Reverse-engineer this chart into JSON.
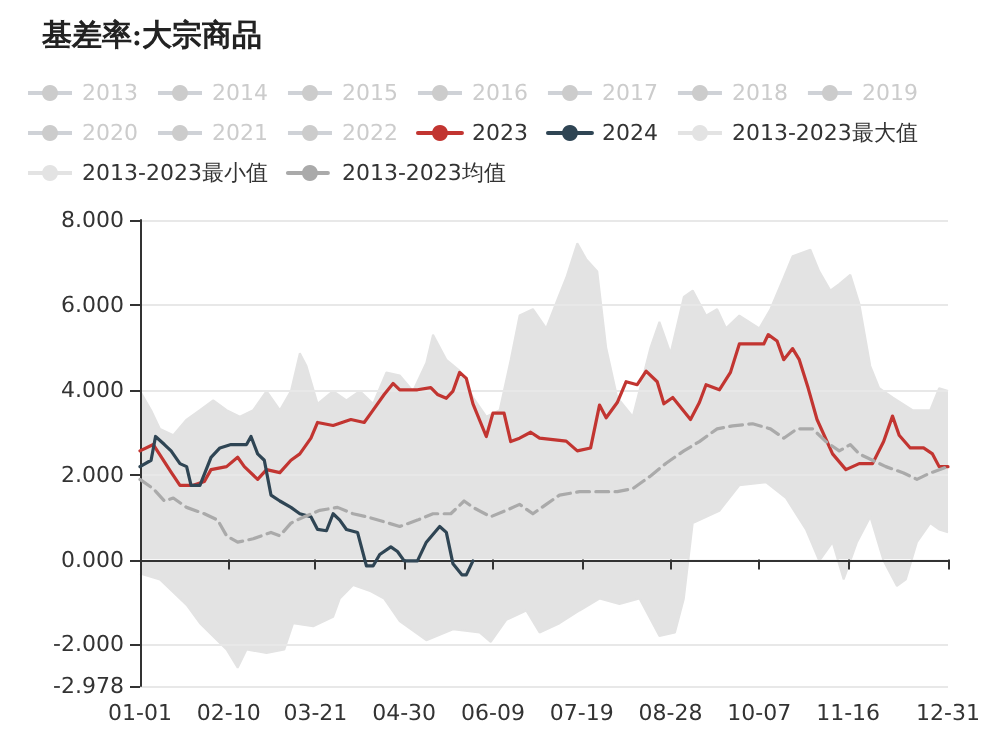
{
  "chart_data": {
    "type": "line",
    "title": "基差率:大宗商品",
    "xlim": [
      "--01-01",
      "--12-31"
    ],
    "xticks": [
      {
        "value": "--01-01",
        "label": "01-01"
      },
      {
        "value": "--02-10",
        "label": "02-10"
      },
      {
        "value": "--03-21",
        "label": "03-21"
      },
      {
        "value": "--04-30",
        "label": "04-30"
      },
      {
        "value": "--06-09",
        "label": "06-09"
      },
      {
        "value": "--07-19",
        "label": "07-19"
      },
      {
        "value": "--08-28",
        "label": "08-28"
      },
      {
        "value": "--10-07",
        "label": "10-07"
      },
      {
        "value": "--11-16",
        "label": "11-16"
      },
      {
        "value": "--12-31",
        "label": "12-31"
      }
    ],
    "ylim": [
      -2.978,
      8
    ],
    "yticks": [
      {
        "value": -2.978,
        "label": "-2.978"
      },
      {
        "value": -2,
        "label": "-2.000"
      },
      {
        "value": 0,
        "label": "0.000"
      },
      {
        "value": 2,
        "label": "2.000"
      },
      {
        "value": 4,
        "label": "4.000"
      },
      {
        "value": 6,
        "label": "6.000"
      },
      {
        "value": 8,
        "label": "8.000"
      }
    ],
    "grid": "y",
    "legend": "top",
    "marker": "none",
    "series": [
      {
        "name": "2013",
        "color": "#cccccc"
      },
      {
        "name": "2014",
        "color": "#cccccc"
      },
      {
        "name": "2015",
        "color": "#cccccc"
      },
      {
        "name": "2016",
        "color": "#cccccc"
      },
      {
        "name": "2017",
        "color": "#cccccc"
      },
      {
        "name": "2018",
        "color": "#cccccc"
      },
      {
        "name": "2019",
        "color": "#cccccc"
      },
      {
        "name": "2020",
        "color": "#cccccc"
      },
      {
        "name": "2021",
        "color": "#cccccc"
      },
      {
        "name": "2022",
        "color": "#cccccc"
      },
      {
        "name": "2023",
        "color": "#c23531",
        "x": [
          "--01-01",
          "--01-07",
          "--01-15",
          "--01-19",
          "--01-25",
          "--01-30",
          "--02-02",
          "--02-09",
          "--02-14",
          "--02-17",
          "--02-23",
          "--02-27",
          "--03-05",
          "--03-10",
          "--03-14",
          "--03-19",
          "--03-22",
          "--03-29",
          "--04-06",
          "--04-12",
          "--04-16",
          "--04-21",
          "--04-25",
          "--04-28",
          "--05-06",
          "--05-12",
          "--05-15",
          "--05-19",
          "--05-22",
          "--05-25",
          "--05-28",
          "--05-31",
          "--06-06",
          "--06-09",
          "--06-14",
          "--06-17",
          "--06-21",
          "--06-26",
          "--06-30",
          "--07-12",
          "--07-17",
          "--07-23",
          "--07-27",
          "--07-30",
          "--08-04",
          "--08-08",
          "--08-13",
          "--08-17",
          "--08-22",
          "--08-25",
          "--08-29",
          "--09-06",
          "--09-10",
          "--09-13",
          "--09-19",
          "--09-24",
          "--09-28",
          "--10-09",
          "--10-11",
          "--10-15",
          "--10-18",
          "--10-22",
          "--10-25",
          "--10-29",
          "--11-02",
          "--11-09",
          "--11-15",
          "--11-21",
          "--11-27",
          "--12-02",
          "--12-06",
          "--12-09",
          "--12-14",
          "--12-20",
          "--12-24",
          "--12-27",
          "--12-31"
        ],
        "values": [
          2.56,
          2.71,
          2.06,
          1.75,
          1.75,
          1.84,
          2.12,
          2.19,
          2.41,
          2.19,
          1.89,
          2.12,
          2.05,
          2.34,
          2.49,
          2.86,
          3.23,
          3.16,
          3.3,
          3.23,
          3.52,
          3.89,
          4.15,
          4.0,
          4.0,
          4.05,
          3.89,
          3.8,
          3.97,
          4.41,
          4.27,
          3.67,
          2.9,
          3.45,
          3.45,
          2.78,
          2.86,
          3.0,
          2.86,
          2.79,
          2.56,
          2.63,
          3.64,
          3.34,
          3.7,
          4.19,
          4.12,
          4.44,
          4.19,
          3.67,
          3.82,
          3.3,
          3.7,
          4.12,
          4.0,
          4.41,
          5.08,
          5.08,
          5.3,
          5.15,
          4.71,
          4.97,
          4.71,
          4.04,
          3.3,
          2.49,
          2.12,
          2.26,
          2.26,
          2.78,
          3.38,
          2.93,
          2.63,
          2.63,
          2.49,
          2.19,
          2.19
        ]
      },
      {
        "name": "2024",
        "color": "#2f4554",
        "x": [
          "--01-01",
          "--01-06",
          "--01-08",
          "--01-12",
          "--01-15",
          "--01-19",
          "--01-22",
          "--01-24",
          "--01-28",
          "--02-02",
          "--02-06",
          "--02-11",
          "--02-18",
          "--02-20",
          "--02-23",
          "--02-26",
          "--03-01",
          "--03-05",
          "--03-10",
          "--03-14",
          "--03-19",
          "--03-22",
          "--03-26",
          "--03-29",
          "--04-01",
          "--04-04",
          "--04-09",
          "--04-13",
          "--04-16",
          "--04-19",
          "--04-24",
          "--04-27",
          "--04-30",
          "--05-06",
          "--05-10",
          "--05-16",
          "--05-19",
          "--05-22",
          "--05-26",
          "--05-28",
          "--05-31"
        ],
        "values": [
          2.19,
          2.34,
          2.9,
          2.71,
          2.56,
          2.26,
          2.19,
          1.75,
          1.75,
          2.41,
          2.63,
          2.71,
          2.71,
          2.9,
          2.49,
          2.34,
          1.52,
          1.38,
          1.23,
          1.08,
          1.01,
          0.71,
          0.68,
          1.08,
          0.93,
          0.71,
          0.64,
          -0.15,
          -0.15,
          0.12,
          0.3,
          0.19,
          -0.03,
          -0.03,
          0.41,
          0.78,
          0.64,
          -0.1,
          -0.36,
          -0.36,
          -0.03
        ]
      },
      {
        "name": "2013-2023最大值",
        "type": "area",
        "color": "#e3e3e3",
        "x": [
          "--01-01",
          "--01-06",
          "--01-10",
          "--01-16",
          "--01-22",
          "--01-28",
          "--02-03",
          "--02-09",
          "--02-15",
          "--02-21",
          "--02-27",
          "--03-05",
          "--03-10",
          "--03-14",
          "--03-17",
          "--03-22",
          "--03-29",
          "--04-04",
          "--04-10",
          "--04-16",
          "--04-22",
          "--04-28",
          "--05-04",
          "--05-10",
          "--05-13",
          "--05-19",
          "--05-25",
          "--05-31",
          "--06-06",
          "--06-12",
          "--06-17",
          "--06-21",
          "--06-27",
          "--07-03",
          "--07-08",
          "--07-12",
          "--07-17",
          "--07-21",
          "--07-26",
          "--07-30",
          "--08-04",
          "--08-11",
          "--08-19",
          "--08-23",
          "--08-28",
          "--09-03",
          "--09-07",
          "--09-13",
          "--09-18",
          "--09-22",
          "--09-28",
          "--10-07",
          "--10-12",
          "--10-18",
          "--10-22",
          "--10-30",
          "--11-03",
          "--11-08",
          "--11-12",
          "--11-17",
          "--11-21",
          "--11-26",
          "--11-30",
          "--12-06",
          "--12-15",
          "--12-23",
          "--12-27",
          "--12-31"
        ],
        "values": [
          3.97,
          3.52,
          3.08,
          2.93,
          3.3,
          3.52,
          3.75,
          3.52,
          3.37,
          3.52,
          3.97,
          3.52,
          3.97,
          4.86,
          4.56,
          3.67,
          3.97,
          3.75,
          3.97,
          3.67,
          4.41,
          4.34,
          3.97,
          4.64,
          5.3,
          4.71,
          4.45,
          3.82,
          3.37,
          3.52,
          4.71,
          5.75,
          5.9,
          5.45,
          6.12,
          6.64,
          7.45,
          7.08,
          6.79,
          5.0,
          3.82,
          3.37,
          5.0,
          5.6,
          4.86,
          6.19,
          6.34,
          5.75,
          5.9,
          5.45,
          5.75,
          5.45,
          5.9,
          6.64,
          7.15,
          7.3,
          6.79,
          6.34,
          6.49,
          6.71,
          6.04,
          4.56,
          4.04,
          3.82,
          3.52,
          3.52,
          4.04,
          3.97
        ]
      },
      {
        "name": "2013-2023最小值",
        "type": "area",
        "color": "#e3e3e3",
        "x": [
          "--01-01",
          "--01-10",
          "--01-16",
          "--01-22",
          "--01-28",
          "--02-09",
          "--02-14",
          "--02-18",
          "--02-27",
          "--03-07",
          "--03-11",
          "--03-20",
          "--03-29",
          "--04-01",
          "--04-07",
          "--04-15",
          "--04-21",
          "--04-28",
          "--05-10",
          "--05-22",
          "--06-03",
          "--06-08",
          "--06-15",
          "--06-24",
          "--06-30",
          "--07-09",
          "--07-18",
          "--07-27",
          "--08-05",
          "--08-14",
          "--08-23",
          "--08-30",
          "--09-03",
          "--09-07",
          "--09-19",
          "--09-28",
          "--10-10",
          "--10-19",
          "--10-28",
          "--11-03",
          "--11-09",
          "--11-14",
          "--11-20",
          "--11-26",
          "--12-02",
          "--12-08",
          "--12-12",
          "--12-17",
          "--12-23",
          "--12-27",
          "--12-31"
        ],
        "values": [
          -0.33,
          -0.47,
          -0.77,
          -1.07,
          -1.5,
          -2.12,
          -2.55,
          -2.12,
          -2.2,
          -2.12,
          -1.5,
          -1.57,
          -1.35,
          -0.92,
          -0.6,
          -0.75,
          -0.92,
          -1.45,
          -1.9,
          -1.64,
          -1.72,
          -1.94,
          -1.42,
          -1.2,
          -1.72,
          -1.5,
          -1.2,
          -0.92,
          -1.05,
          -0.92,
          -1.8,
          -1.72,
          -0.92,
          0.86,
          1.15,
          1.75,
          1.82,
          1.45,
          0.71,
          -0.03,
          0.41,
          -0.47,
          0.41,
          1.01,
          -0.03,
          -0.62,
          -0.47,
          0.41,
          0.86,
          0.71,
          0.64
        ]
      },
      {
        "name": "2013-2023均值",
        "color": "#aaaaaa",
        "line_style": "dashed",
        "x": [
          "--01-01",
          "--01-07",
          "--01-12",
          "--01-16",
          "--01-22",
          "--01-30",
          "--02-05",
          "--02-09",
          "--02-14",
          "--02-21",
          "--03-01",
          "--03-05",
          "--03-10",
          "--03-16",
          "--03-23",
          "--03-31",
          "--04-07",
          "--04-13",
          "--04-21",
          "--04-28",
          "--05-06",
          "--05-13",
          "--05-21",
          "--05-27",
          "--05-31",
          "--06-08",
          "--06-15",
          "--06-21",
          "--06-27",
          "--07-03",
          "--07-09",
          "--07-18",
          "--07-27",
          "--08-04",
          "--08-11",
          "--08-19",
          "--08-26",
          "--09-03",
          "--09-10",
          "--09-18",
          "--09-25",
          "--10-04",
          "--10-12",
          "--10-18",
          "--10-24",
          "--10-31",
          "--11-06",
          "--11-12",
          "--11-17",
          "--11-21",
          "--11-27",
          "--12-03",
          "--12-11",
          "--12-17",
          "--12-23",
          "--12-31"
        ],
        "values": [
          1.89,
          1.67,
          1.38,
          1.45,
          1.23,
          1.08,
          0.93,
          0.56,
          0.41,
          0.49,
          0.64,
          0.56,
          0.86,
          1.01,
          1.16,
          1.23,
          1.08,
          1.01,
          0.89,
          0.78,
          0.93,
          1.08,
          1.08,
          1.38,
          1.23,
          1.01,
          1.16,
          1.3,
          1.08,
          1.3,
          1.52,
          1.6,
          1.6,
          1.6,
          1.67,
          1.97,
          2.27,
          2.56,
          2.78,
          3.08,
          3.15,
          3.2,
          3.08,
          2.86,
          3.08,
          3.08,
          2.78,
          2.56,
          2.71,
          2.49,
          2.34,
          2.19,
          2.04,
          1.89,
          2.04,
          2.19
        ]
      }
    ]
  }
}
